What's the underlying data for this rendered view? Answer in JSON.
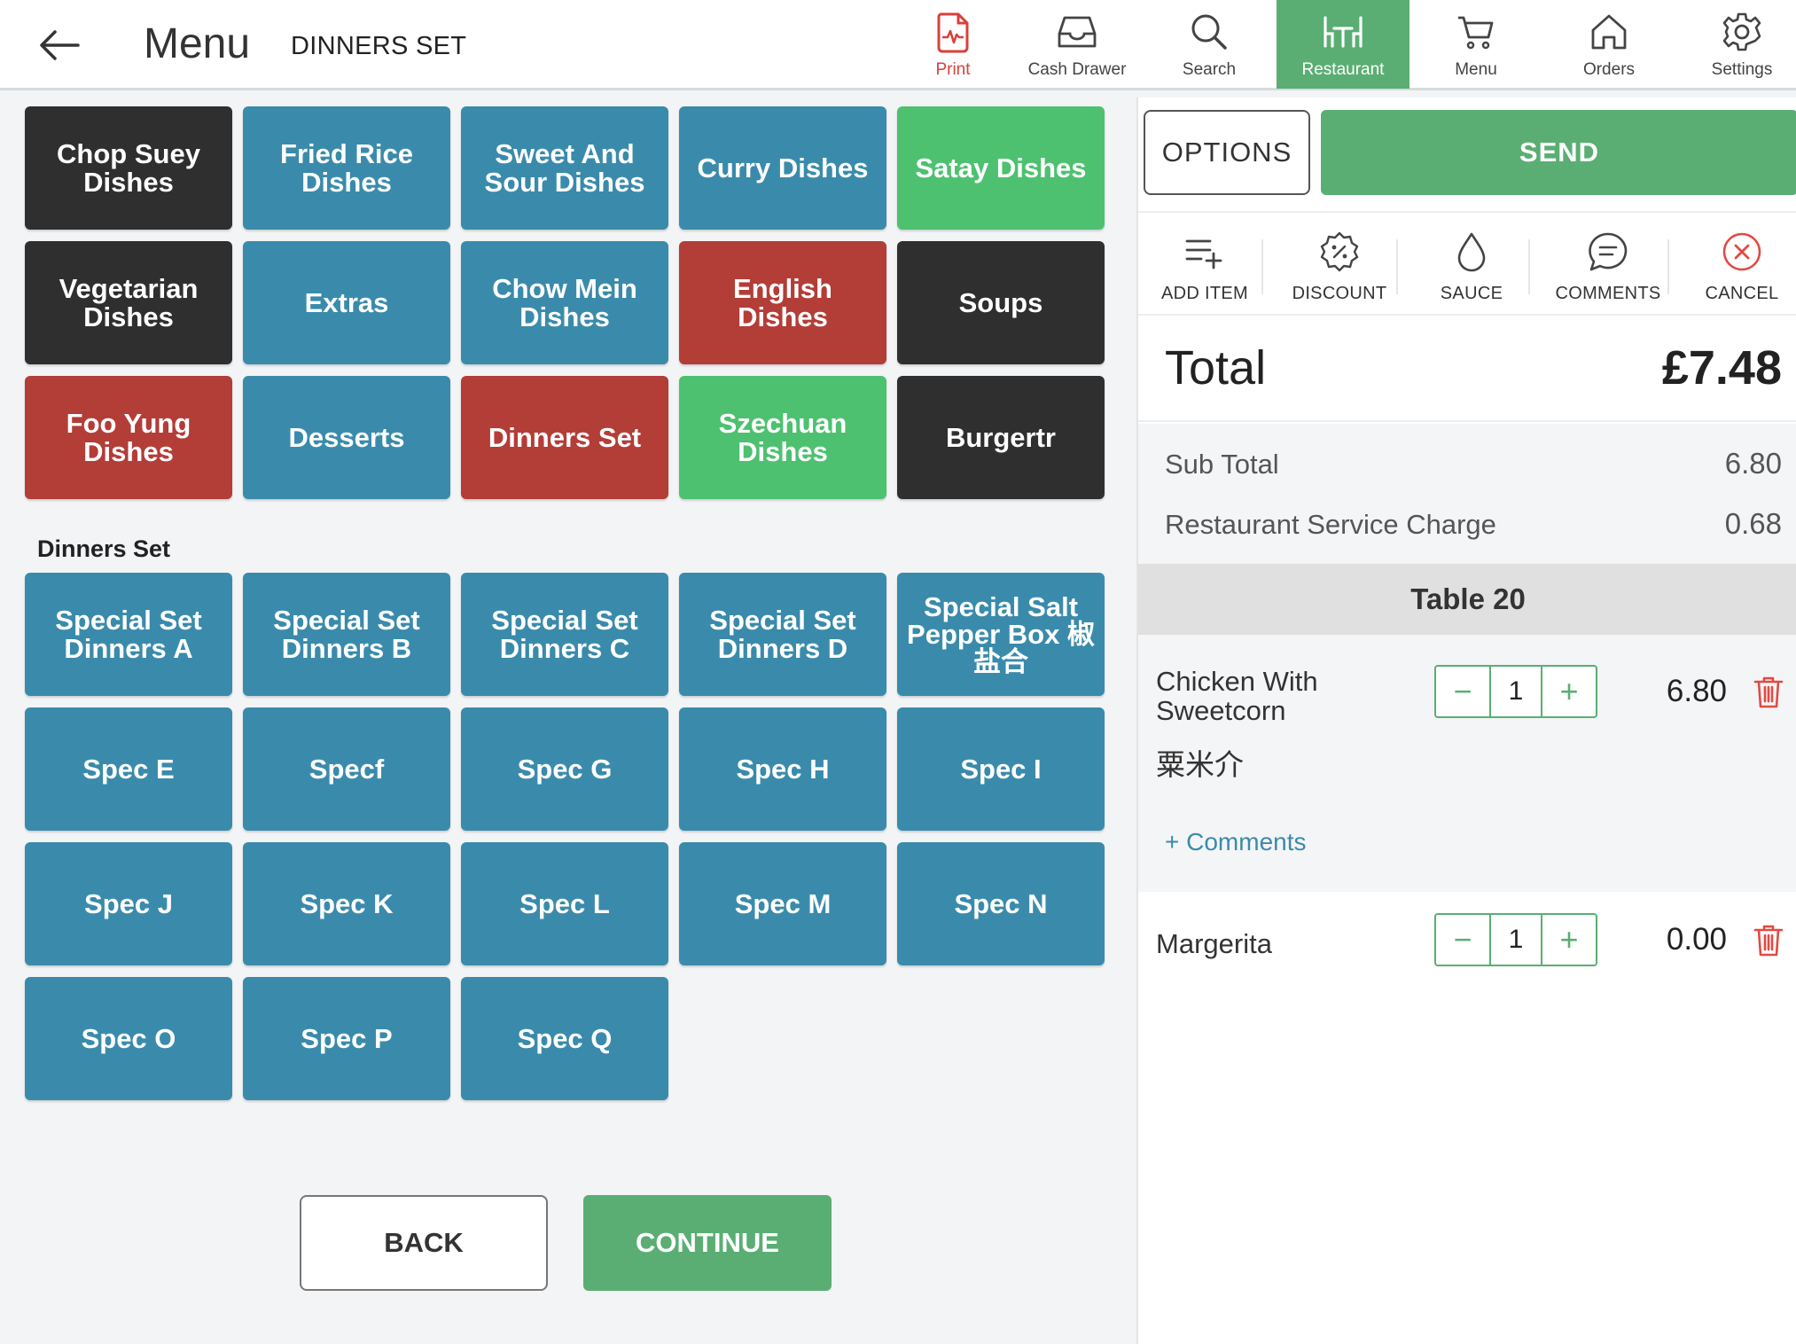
{
  "header": {
    "title": "Menu",
    "subtitle": "DINNERS SET",
    "nav": [
      {
        "label": "Print",
        "icon": "print-icon"
      },
      {
        "label": "Cash Drawer",
        "icon": "cash-drawer-icon"
      },
      {
        "label": "Search",
        "icon": "search-icon"
      },
      {
        "label": "Restaurant",
        "icon": "restaurant-icon"
      },
      {
        "label": "Menu",
        "icon": "cart-icon"
      },
      {
        "label": "Orders",
        "icon": "home-icon"
      },
      {
        "label": "Settings",
        "icon": "gear-icon"
      }
    ],
    "active_nav": "Restaurant"
  },
  "categories": [
    {
      "label": "Chop Suey Dishes",
      "color": "#2f2f30"
    },
    {
      "label": "Fried Rice Dishes",
      "color": "#3a8bab"
    },
    {
      "label": "Sweet And Sour Dishes",
      "color": "#3a8bab"
    },
    {
      "label": "Curry Dishes",
      "color": "#3a8bab"
    },
    {
      "label": "Satay Dishes",
      "color": "#4dc170"
    },
    {
      "label": "Vegetarian Dishes",
      "color": "#2f2f30"
    },
    {
      "label": "Extras",
      "color": "#3a8bab"
    },
    {
      "label": "Chow Mein Dishes",
      "color": "#3a8bab"
    },
    {
      "label": "English Dishes",
      "color": "#b33d37"
    },
    {
      "label": "Soups",
      "color": "#2f2f30"
    },
    {
      "label": "Foo Yung Dishes",
      "color": "#b33d37"
    },
    {
      "label": "Desserts",
      "color": "#3a8bab"
    },
    {
      "label": "Dinners Set",
      "color": "#b33d37"
    },
    {
      "label": "Szechuan Dishes",
      "color": "#4dc170"
    },
    {
      "label": "Burgertr",
      "color": "#2f2f30"
    }
  ],
  "section": {
    "label": "Dinners Set",
    "items": [
      "Special Set Dinners A",
      "Special Set Dinners B",
      "Special Set Dinners C",
      "Special Set Dinners D",
      "Special Salt Pepper Box 椒盐合",
      "Spec E",
      "Specf",
      "Spec G",
      "Spec H",
      "Spec I",
      "Spec J",
      "Spec K",
      "Spec L",
      "Spec M",
      "Spec N",
      "Spec O",
      "Spec P",
      "Spec Q"
    ]
  },
  "footer": {
    "back_label": "BACK",
    "continue_label": "CONTINUE"
  },
  "panel": {
    "options_label": "OPTIONS",
    "send_label": "SEND",
    "actions": [
      {
        "label": "ADD ITEM",
        "icon": "add-item-icon"
      },
      {
        "label": "DISCOUNT",
        "icon": "discount-icon"
      },
      {
        "label": "SAUCE",
        "icon": "sauce-drop-icon"
      },
      {
        "label": "COMMENTS",
        "icon": "comments-icon"
      },
      {
        "label": "CANCEL",
        "icon": "cancel-icon"
      }
    ],
    "total_label": "Total",
    "total_value": "£7.48",
    "subtotal_label": "Sub Total",
    "subtotal_value": "6.80",
    "service_label": "Restaurant Service Charge",
    "service_value": "0.68",
    "table_label": "Table 20",
    "items": [
      {
        "name_line1": "Chicken With",
        "name_line2": "Sweetcorn",
        "chinese": "粟米介",
        "qty": "1",
        "price": "6.80",
        "comments_link": "+ Comments"
      },
      {
        "name": "Margerita",
        "qty": "1",
        "price": "0.00"
      }
    ]
  },
  "colors": {
    "accent_green": "#5aae73",
    "tile_blue": "#3a8bab",
    "tile_dark": "#2f2f30",
    "tile_red": "#b33d37",
    "tile_green": "#4dc170",
    "print_red": "#d9403a"
  }
}
